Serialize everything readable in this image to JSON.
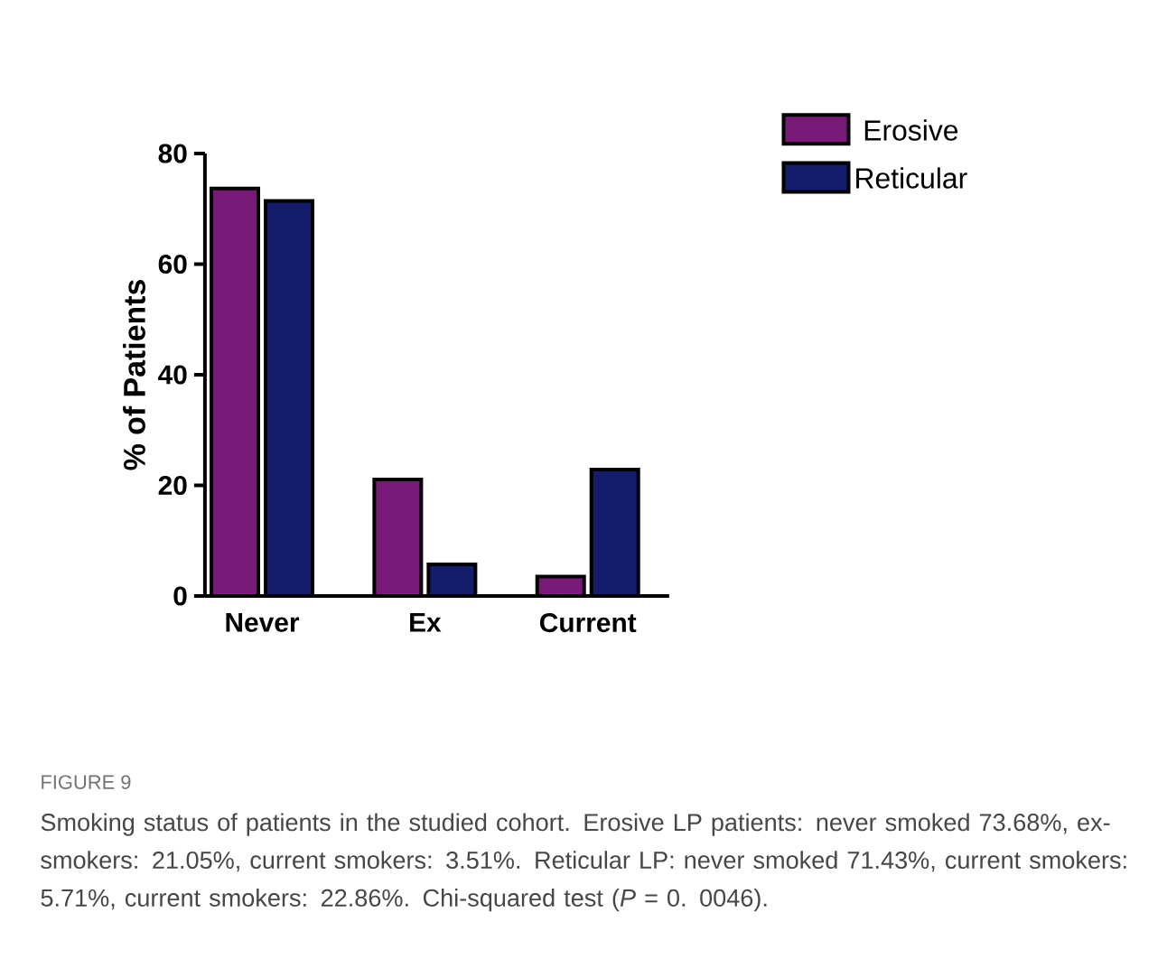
{
  "chart_data": {
    "type": "bar",
    "categories": [
      "Never",
      "Ex",
      "Current"
    ],
    "ylabel": "% of Patients",
    "ylim": [
      0,
      80
    ],
    "yticks": [
      0,
      20,
      40,
      60,
      80
    ],
    "legend": "top right",
    "grid": false,
    "series": [
      {
        "name": "Erosive",
        "color": "#7a1a78",
        "values": [
          73.68,
          21.05,
          3.51
        ]
      },
      {
        "name": "Reticular",
        "color": "#141d6b",
        "values": [
          71.43,
          5.71,
          22.86
        ]
      }
    ],
    "annotations": [
      "FIGURE 9",
      "Smoking status of patients in the studied cohort. Erosive LP patients: never smoked 73.68%, ex-smokers: 21.05%, current smokers: 3.51%. Reticular LP: never smoked 71.43%, current smokers: 5.71%, current smokers: 22.86%. Chi-squared test (*P* = 0. 0046)."
    ]
  }
}
